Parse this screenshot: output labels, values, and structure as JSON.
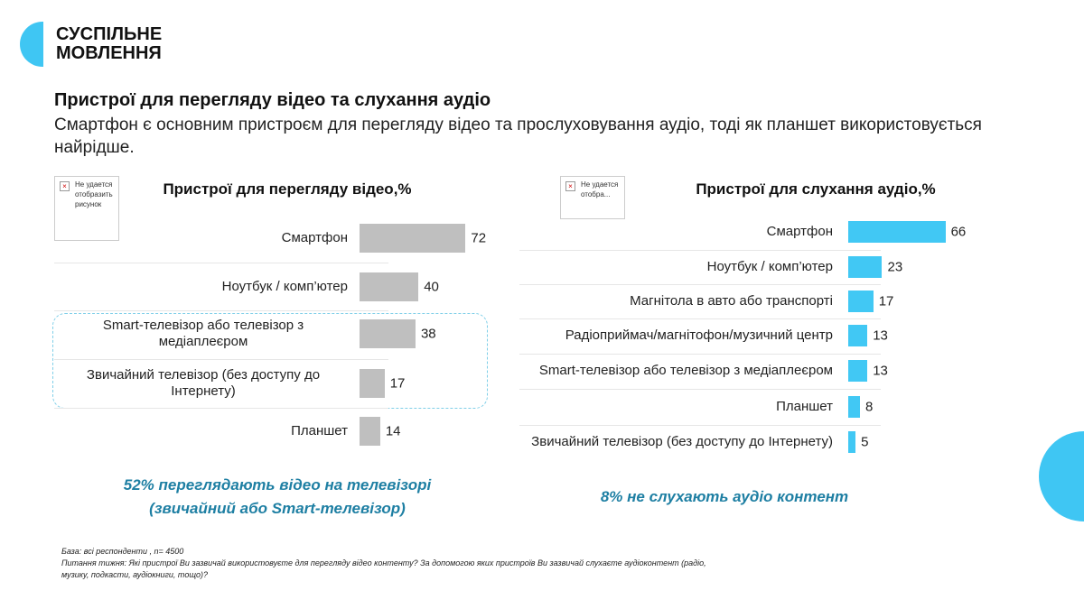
{
  "header": {
    "logo": [
      "СУСПІЛЬНЕ",
      "МОВЛЕННЯ"
    ],
    "title": "Пристрої для перегляду відео та слухання аудіо",
    "subtitle": "Смартфон є основним пристроєм для перегляду відео та прослуховування аудіо, тоді як планшет використовується найрідше."
  },
  "placeholders": [
    "Не удается отобразить рисунок",
    "Не удается отобра..."
  ],
  "chart_data": [
    {
      "type": "bar",
      "orientation": "horizontal",
      "title": "Пристрої для перегляду відео,%",
      "color": "#bfbfbf",
      "categories": [
        "Смартфон",
        "Ноутбук / комп’ютер",
        "Smart-телевізор або телевізор з медіаплеєром",
        "Звичайний телевізор (без доступу до Інтернету)",
        "Планшет"
      ],
      "values": [
        72,
        40,
        38,
        17,
        14
      ],
      "note": "52% переглядають відео на телевізорі (звичайний або Smart-телевізор)"
    },
    {
      "type": "bar",
      "orientation": "horizontal",
      "title": "Пристрої для слухання аудіо,%",
      "color": "#41c8f4",
      "categories": [
        "Смартфон",
        "Ноутбук / комп’ютер",
        "Магнітола в авто або транспорті",
        "Радіоприймач/магнітофон/музичний центр",
        "Smart-телевізор або телевізор з медіаплеєром",
        "Планшет",
        "Звичайний телевізор (без доступу до Інтернету)"
      ],
      "values": [
        66,
        23,
        17,
        13,
        13,
        8,
        5
      ],
      "note": "8% не слухають аудіо контент"
    }
  ],
  "footnotes": [
    "База: всі респонденти , n= 4500",
    "Питання тижня: Які пристрої Ви зазвичай використовуєте для перегляду відео контенту? За допомогою яких пристроїв Ви зазвичай слухаєте аудіоконтент (радіо, музику, подкасти, аудіокниги, тощо)?"
  ]
}
